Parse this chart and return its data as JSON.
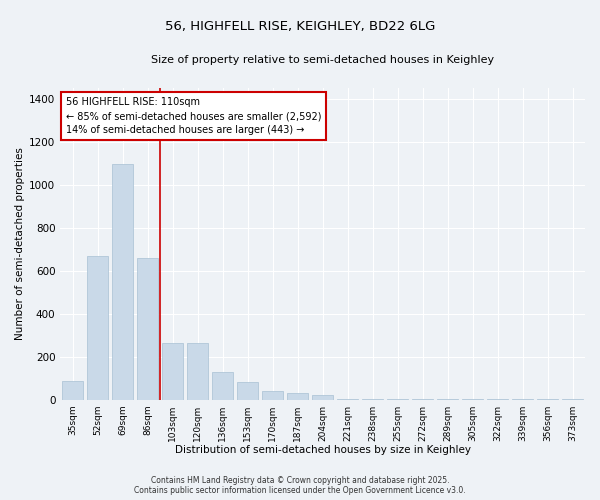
{
  "title1": "56, HIGHFELL RISE, KEIGHLEY, BD22 6LG",
  "title2": "Size of property relative to semi-detached houses in Keighley",
  "xlabel": "Distribution of semi-detached houses by size in Keighley",
  "ylabel": "Number of semi-detached properties",
  "bar_color": "#c9d9e8",
  "bar_edge_color": "#a8c0d4",
  "categories": [
    "35sqm",
    "52sqm",
    "69sqm",
    "86sqm",
    "103sqm",
    "120sqm",
    "136sqm",
    "153sqm",
    "170sqm",
    "187sqm",
    "204sqm",
    "221sqm",
    "238sqm",
    "255sqm",
    "272sqm",
    "289sqm",
    "305sqm",
    "322sqm",
    "339sqm",
    "356sqm",
    "373sqm"
  ],
  "values": [
    85,
    670,
    1095,
    660,
    265,
    265,
    130,
    80,
    40,
    30,
    20,
    5,
    5,
    3,
    2,
    1,
    1,
    1,
    1,
    1,
    1
  ],
  "ylim": [
    0,
    1450
  ],
  "yticks": [
    0,
    200,
    400,
    600,
    800,
    1000,
    1200,
    1400
  ],
  "vline_index": 4,
  "annotation_title": "56 HIGHFELL RISE: 110sqm",
  "annotation_line1": "← 85% of semi-detached houses are smaller (2,592)",
  "annotation_line2": "14% of semi-detached houses are larger (443) →",
  "footnote1": "Contains HM Land Registry data © Crown copyright and database right 2025.",
  "footnote2": "Contains public sector information licensed under the Open Government Licence v3.0.",
  "bg_color": "#eef2f6",
  "plot_bg_color": "#eef2f6",
  "grid_color": "#ffffff",
  "vline_color": "#cc0000",
  "box_color": "#cc0000"
}
